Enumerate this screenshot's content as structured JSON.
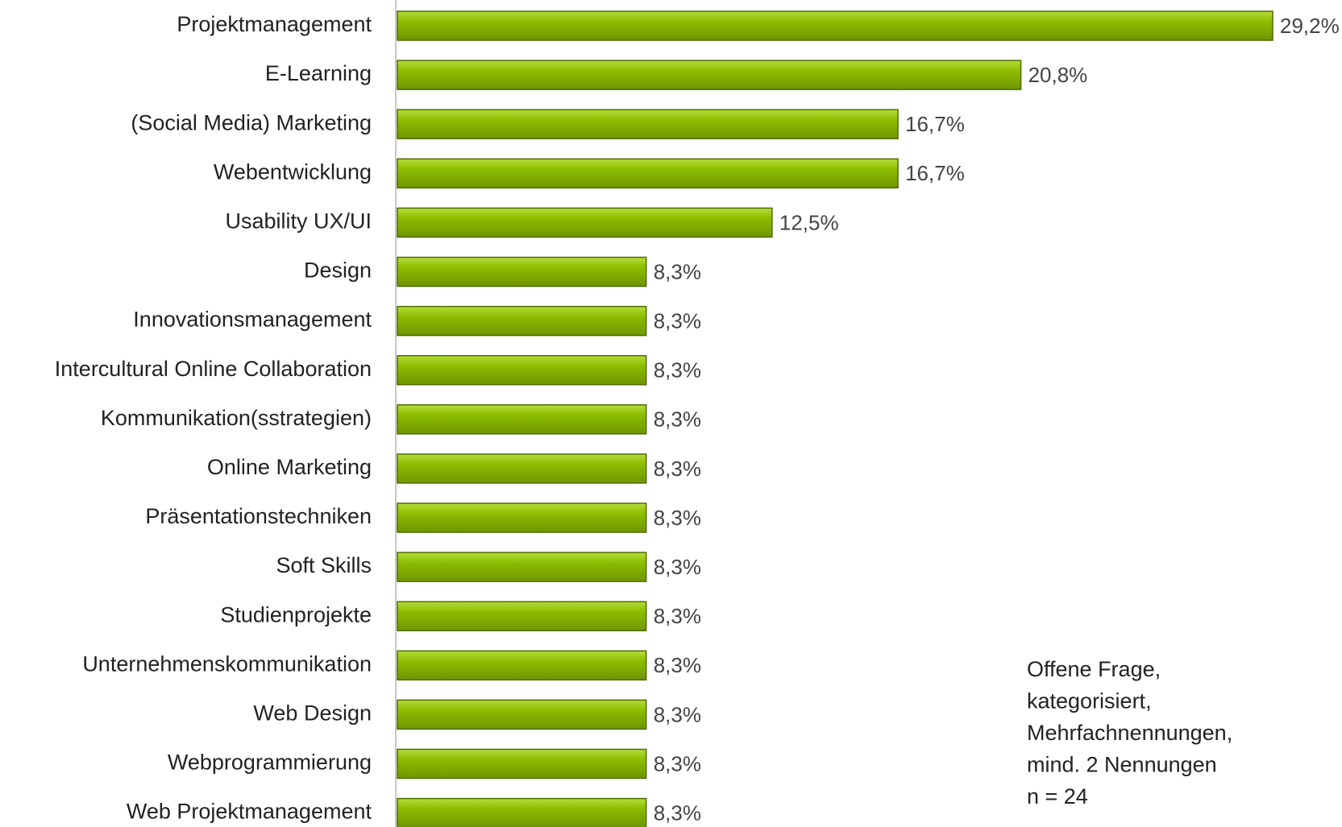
{
  "chart_data": {
    "type": "bar",
    "orientation": "horizontal",
    "color": "#8dbd00",
    "categories": [
      "Projektmanagement",
      "E-Learning",
      "(Social Media) Marketing",
      "Webentwicklung",
      "Usability UX/UI",
      "Design",
      "Innovationsmanagement",
      "Intercultural Online Collaboration",
      "Kommunikation(sstrategien)",
      "Online Marketing",
      "Präsentationstechniken",
      "Soft Skills",
      "Studienprojekte",
      "Unternehmenskommunikation",
      "Web Design",
      "Webprogrammierung",
      "Web Projektmanagement"
    ],
    "values": [
      29.2,
      20.8,
      16.7,
      16.7,
      12.5,
      8.3,
      8.3,
      8.3,
      8.3,
      8.3,
      8.3,
      8.3,
      8.3,
      8.3,
      8.3,
      8.3,
      8.3
    ],
    "value_labels": [
      "29,2%",
      "20,8%",
      "16,7%",
      "16,7%",
      "12,5%",
      "8,3%",
      "8,3%",
      "8,3%",
      "8,3%",
      "8,3%",
      "8,3%",
      "8,3%",
      "8,3%",
      "8,3%",
      "8,3%",
      "8,3%",
      "8,3%"
    ],
    "note": [
      "Offene Frage,",
      "kategorisiert,",
      "Mehrfachnennungen,",
      "mind. 2 Nennungen",
      "n = 24"
    ]
  }
}
